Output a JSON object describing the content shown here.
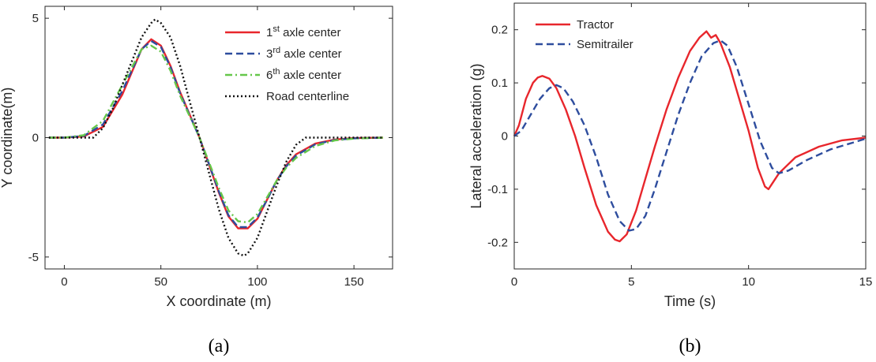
{
  "colors": {
    "red": "#e8262c",
    "blue": "#2e4d9e",
    "green": "#66c74a",
    "black": "#111111",
    "axis": "#262626"
  },
  "chart_data": [
    {
      "type": "line",
      "caption": "(a)",
      "xlabel": "X coordinate (m)",
      "ylabel": "Y coordinate(m)",
      "xlim": [
        -10,
        170
      ],
      "ylim": [
        -5.5,
        5.5
      ],
      "xticks": [
        0,
        50,
        100,
        150
      ],
      "xtick_labels": [
        "0",
        "50",
        "100",
        "150"
      ],
      "yticks": [
        -5,
        0,
        5
      ],
      "ytick_labels": [
        "-5",
        "0",
        "5"
      ],
      "legend_position": "top-right",
      "series": [
        {
          "name": "1st axle center",
          "legend_base": "1",
          "legend_sup": "st",
          "legend_rest": " axle center",
          "color": "red",
          "dash": "solid",
          "points": [
            [
              -8,
              0
            ],
            [
              0,
              0
            ],
            [
              10,
              0.05
            ],
            [
              20,
              0.45
            ],
            [
              30,
              1.8
            ],
            [
              40,
              3.7
            ],
            [
              45,
              4.12
            ],
            [
              50,
              3.85
            ],
            [
              55,
              3.0
            ],
            [
              60,
              1.9
            ],
            [
              70,
              0
            ],
            [
              80,
              -2.3
            ],
            [
              85,
              -3.3
            ],
            [
              90,
              -3.8
            ],
            [
              95,
              -3.8
            ],
            [
              100,
              -3.4
            ],
            [
              105,
              -2.6
            ],
            [
              110,
              -1.8
            ],
            [
              115,
              -1.15
            ],
            [
              120,
              -0.7
            ],
            [
              130,
              -0.25
            ],
            [
              140,
              -0.08
            ],
            [
              150,
              -0.02
            ],
            [
              165,
              0
            ]
          ]
        },
        {
          "name": "3rd axle center",
          "legend_base": "3",
          "legend_sup": "rd",
          "legend_rest": " axle center",
          "color": "blue",
          "dash": "dashed",
          "points": [
            [
              -8,
              0
            ],
            [
              0,
              0
            ],
            [
              10,
              0.07
            ],
            [
              20,
              0.55
            ],
            [
              30,
              1.95
            ],
            [
              40,
              3.7
            ],
            [
              45,
              4.05
            ],
            [
              50,
              3.8
            ],
            [
              55,
              2.95
            ],
            [
              60,
              1.85
            ],
            [
              70,
              0
            ],
            [
              80,
              -2.25
            ],
            [
              85,
              -3.25
            ],
            [
              90,
              -3.75
            ],
            [
              95,
              -3.75
            ],
            [
              100,
              -3.35
            ],
            [
              105,
              -2.6
            ],
            [
              110,
              -1.8
            ],
            [
              115,
              -1.2
            ],
            [
              120,
              -0.75
            ],
            [
              130,
              -0.28
            ],
            [
              140,
              -0.1
            ],
            [
              150,
              -0.03
            ],
            [
              165,
              0
            ]
          ]
        },
        {
          "name": "6th axle center",
          "legend_base": "6",
          "legend_sup": "th",
          "legend_rest": " axle center",
          "color": "green",
          "dash": "dashdot",
          "points": [
            [
              -8,
              0
            ],
            [
              0,
              0
            ],
            [
              10,
              0.1
            ],
            [
              20,
              0.7
            ],
            [
              30,
              2.2
            ],
            [
              40,
              3.7
            ],
            [
              45,
              3.85
            ],
            [
              50,
              3.6
            ],
            [
              55,
              2.8
            ],
            [
              60,
              1.75
            ],
            [
              70,
              0
            ],
            [
              80,
              -2.1
            ],
            [
              85,
              -3.05
            ],
            [
              90,
              -3.5
            ],
            [
              95,
              -3.55
            ],
            [
              100,
              -3.2
            ],
            [
              105,
              -2.5
            ],
            [
              110,
              -1.8
            ],
            [
              115,
              -1.25
            ],
            [
              120,
              -0.85
            ],
            [
              130,
              -0.35
            ],
            [
              140,
              -0.12
            ],
            [
              150,
              -0.04
            ],
            [
              165,
              0
            ]
          ]
        },
        {
          "name": "Road centerline",
          "legend_base": "Road centerline",
          "legend_sup": "",
          "legend_rest": "",
          "color": "black",
          "dash": "dotted",
          "points": [
            [
              -8,
              0
            ],
            [
              15,
              0
            ],
            [
              20,
              0.4
            ],
            [
              25,
              1.2
            ],
            [
              30,
              2.2
            ],
            [
              35,
              3.2
            ],
            [
              40,
              4.2
            ],
            [
              45,
              4.8
            ],
            [
              47,
              4.95
            ],
            [
              50,
              4.8
            ],
            [
              55,
              4.2
            ],
            [
              60,
              3.0
            ],
            [
              65,
              1.5
            ],
            [
              70,
              0
            ],
            [
              75,
              -1.5
            ],
            [
              80,
              -3.0
            ],
            [
              85,
              -4.2
            ],
            [
              90,
              -4.85
            ],
            [
              93,
              -4.95
            ],
            [
              95,
              -4.85
            ],
            [
              100,
              -4.2
            ],
            [
              105,
              -3.1
            ],
            [
              110,
              -2.0
            ],
            [
              115,
              -1.0
            ],
            [
              120,
              -0.3
            ],
            [
              125,
              0
            ],
            [
              165,
              0
            ]
          ]
        }
      ]
    },
    {
      "type": "line",
      "caption": "(b)",
      "xlabel": "Time (s)",
      "ylabel": "Lateral acceleration (g)",
      "xlim": [
        0,
        15
      ],
      "ylim": [
        -0.25,
        0.25
      ],
      "xticks": [
        0,
        5,
        10,
        15
      ],
      "xtick_labels": [
        "0",
        "5",
        "10",
        "15"
      ],
      "yticks": [
        -0.2,
        -0.1,
        0,
        0.1,
        0.2
      ],
      "ytick_labels": [
        "-0.2",
        "-0.1",
        "0",
        "0.1",
        "0.2"
      ],
      "legend_position": "top-left",
      "series": [
        {
          "name": "Tractor",
          "legend_base": "Tractor",
          "legend_sup": "",
          "legend_rest": "",
          "color": "red",
          "dash": "solid",
          "points": [
            [
              0,
              0
            ],
            [
              0.2,
              0.02
            ],
            [
              0.5,
              0.07
            ],
            [
              0.8,
              0.1
            ],
            [
              1.0,
              0.11
            ],
            [
              1.2,
              0.113
            ],
            [
              1.5,
              0.108
            ],
            [
              1.8,
              0.09
            ],
            [
              2.2,
              0.05
            ],
            [
              2.6,
              0
            ],
            [
              3.0,
              -0.06
            ],
            [
              3.5,
              -0.13
            ],
            [
              4.0,
              -0.18
            ],
            [
              4.3,
              -0.195
            ],
            [
              4.5,
              -0.198
            ],
            [
              4.8,
              -0.185
            ],
            [
              5.2,
              -0.14
            ],
            [
              5.6,
              -0.08
            ],
            [
              6.0,
              -0.02
            ],
            [
              6.5,
              0.05
            ],
            [
              7.0,
              0.11
            ],
            [
              7.5,
              0.16
            ],
            [
              7.9,
              0.185
            ],
            [
              8.2,
              0.197
            ],
            [
              8.4,
              0.185
            ],
            [
              8.6,
              0.19
            ],
            [
              8.8,
              0.175
            ],
            [
              9.2,
              0.13
            ],
            [
              9.6,
              0.07
            ],
            [
              10.0,
              0.01
            ],
            [
              10.4,
              -0.06
            ],
            [
              10.7,
              -0.095
            ],
            [
              10.85,
              -0.1
            ],
            [
              11.0,
              -0.09
            ],
            [
              11.3,
              -0.07
            ],
            [
              12.0,
              -0.04
            ],
            [
              13.0,
              -0.02
            ],
            [
              14.0,
              -0.008
            ],
            [
              15,
              -0.003
            ]
          ]
        },
        {
          "name": "Semitrailer",
          "legend_base": "Semitrailer",
          "legend_sup": "",
          "legend_rest": "",
          "color": "blue",
          "dash": "dashed",
          "points": [
            [
              0,
              0
            ],
            [
              0.3,
              0.01
            ],
            [
              0.7,
              0.04
            ],
            [
              1.1,
              0.07
            ],
            [
              1.5,
              0.09
            ],
            [
              1.8,
              0.096
            ],
            [
              2.1,
              0.09
            ],
            [
              2.5,
              0.065
            ],
            [
              3.0,
              0.02
            ],
            [
              3.5,
              -0.04
            ],
            [
              4.0,
              -0.11
            ],
            [
              4.5,
              -0.16
            ],
            [
              4.9,
              -0.178
            ],
            [
              5.2,
              -0.175
            ],
            [
              5.6,
              -0.15
            ],
            [
              6.0,
              -0.1
            ],
            [
              6.5,
              -0.03
            ],
            [
              7.0,
              0.04
            ],
            [
              7.5,
              0.1
            ],
            [
              8.0,
              0.15
            ],
            [
              8.5,
              0.175
            ],
            [
              8.8,
              0.18
            ],
            [
              9.1,
              0.17
            ],
            [
              9.5,
              0.13
            ],
            [
              10.0,
              0.06
            ],
            [
              10.5,
              -0.01
            ],
            [
              11.0,
              -0.06
            ],
            [
              11.3,
              -0.07
            ],
            [
              11.7,
              -0.065
            ],
            [
              12.5,
              -0.045
            ],
            [
              13.5,
              -0.025
            ],
            [
              15,
              -0.005
            ]
          ]
        }
      ]
    }
  ]
}
